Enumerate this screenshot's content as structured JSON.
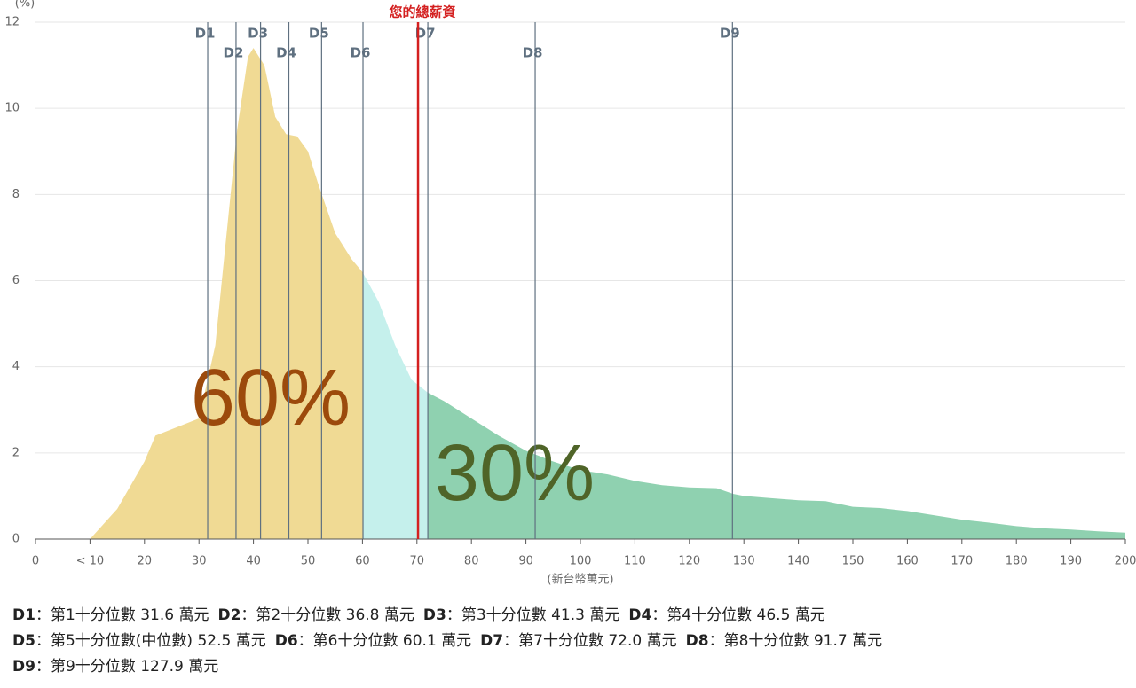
{
  "chart_data": {
    "type": "area",
    "y_label": "(%)",
    "x_label": "(新台幣萬元)",
    "xlim": [
      0,
      200
    ],
    "xticks": [
      0,
      {
        "value": 10,
        "label": "< 10"
      },
      20,
      30,
      40,
      50,
      60,
      70,
      80,
      90,
      100,
      110,
      120,
      130,
      140,
      150,
      160,
      170,
      180,
      190,
      200
    ],
    "ylim": [
      0,
      12
    ],
    "yticks": [
      0,
      2,
      4,
      6,
      8,
      10,
      12
    ],
    "grid": true,
    "series": [
      {
        "x": [
          10,
          15,
          20,
          22,
          25,
          30,
          33,
          35,
          37,
          39,
          40,
          42,
          44,
          46,
          48,
          50,
          52,
          55,
          58,
          60,
          63,
          66,
          69,
          72,
          75,
          80,
          85,
          90,
          95,
          100,
          105,
          110,
          115,
          120,
          125,
          128,
          130,
          135,
          140,
          145,
          150,
          155,
          160,
          165,
          170,
          175,
          180,
          185,
          190,
          195,
          200
        ],
        "values": [
          0,
          0.7,
          1.8,
          2.4,
          2.55,
          2.8,
          4.5,
          7,
          9.5,
          11.2,
          11.4,
          11.0,
          9.8,
          9.4,
          9.35,
          9.0,
          8.2,
          7.1,
          6.5,
          6.2,
          5.5,
          4.5,
          3.7,
          3.4,
          3.2,
          2.8,
          2.4,
          2.05,
          1.8,
          1.6,
          1.5,
          1.35,
          1.25,
          1.2,
          1.18,
          1.05,
          1.0,
          0.95,
          0.9,
          0.88,
          0.75,
          0.72,
          0.65,
          0.55,
          0.45,
          0.38,
          0.3,
          0.25,
          0.22,
          0.18,
          0.15
        ]
      }
    ],
    "split_at": [
      "D6",
      "D7"
    ],
    "area_colors": [
      "#f0da94",
      "#c5f0ec",
      "#8fd1b0"
    ],
    "deciles": {
      "labels": [
        "D1",
        "D2",
        "D3",
        "D4",
        "D5",
        "D6",
        "D7",
        "D8",
        "D9"
      ],
      "names": [
        "第1十分位數",
        "第2十分位數",
        "第3十分位數",
        "第4十分位數",
        "第5十分位數(中位數)",
        "第6十分位數",
        "第7十分位數",
        "第8十分位數",
        "第9十分位數"
      ],
      "values": [
        31.6,
        36.8,
        41.3,
        46.5,
        52.5,
        60.1,
        72,
        91.7,
        127.9
      ],
      "value_labels": [
        "31.6",
        "36.8",
        "41.3",
        "46.5",
        "52.5",
        "60.1",
        "72.0",
        "91.7",
        "127.9"
      ],
      "color": "#5f7080",
      "separator": "：",
      "unit": "萬元"
    },
    "marker": {
      "label": "您的總薪資",
      "value": 70.2,
      "color": "#d42020"
    },
    "annotations": [
      {
        "text": "60%",
        "color": "#9c4a0c"
      },
      {
        "text": "30%",
        "color": "#4f6428"
      }
    ]
  }
}
